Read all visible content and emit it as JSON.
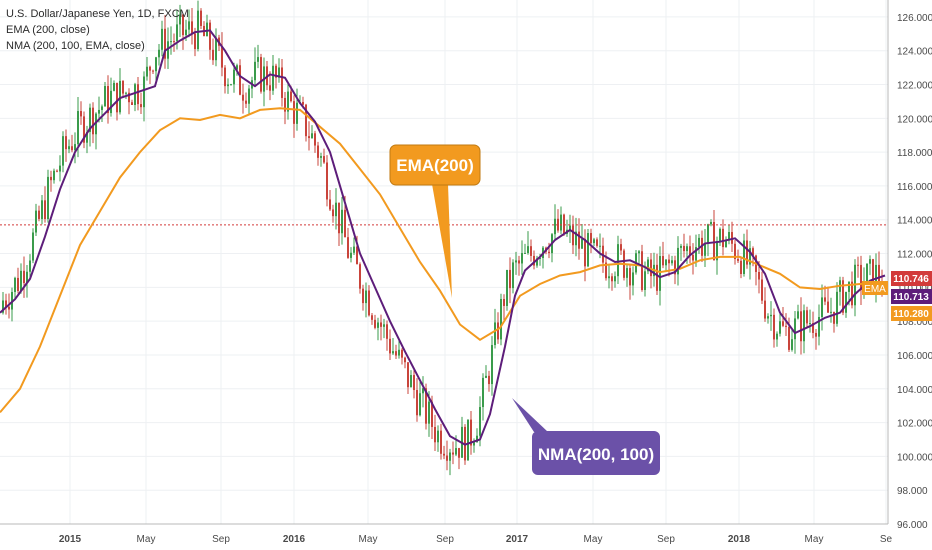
{
  "legend": {
    "title": "U.S. Dollar/Japanese Yen, 1D, FXCM",
    "line1": "EMA (200, close)",
    "line2": "NMA (200, 100, EMA, close)"
  },
  "callouts": {
    "ema": "EMA(200)",
    "nma": "NMA(200, 100)"
  },
  "price_badges": {
    "price": "110.746",
    "nma": "110.713",
    "ema_tag": "EMA",
    "ema": "110.280"
  },
  "colors": {
    "price_badge": "#d23a3a",
    "ema": "#f29a1f",
    "nma": "#5d1d7a",
    "ema_callout_fill": "#f29a1f",
    "nma_callout_fill": "#6b51a8",
    "candle_up": "#3a9b4b",
    "candle_down": "#c9443b",
    "dotted_line": "#d23a3a"
  },
  "chart_data": {
    "type": "line",
    "ylim": [
      96,
      127
    ],
    "y_ticks": [
      "96.000",
      "98.000",
      "100.000",
      "102.000",
      "104.000",
      "106.000",
      "108.000",
      "110.000",
      "112.000",
      "114.000",
      "116.000",
      "118.000",
      "120.000",
      "122.000",
      "124.000",
      "126.000"
    ],
    "x_ticks": [
      "2015",
      "May",
      "Sep",
      "2016",
      "May",
      "Sep",
      "2017",
      "May",
      "Sep",
      "2018",
      "May",
      "Se"
    ],
    "reference_line": 113.7,
    "series": [
      {
        "name": "EMA (200, close)",
        "color": "#f29a1f",
        "points": [
          [
            0,
            102.6
          ],
          [
            20,
            104.0
          ],
          [
            40,
            106.5
          ],
          [
            60,
            109.5
          ],
          [
            80,
            112.5
          ],
          [
            100,
            114.5
          ],
          [
            120,
            116.5
          ],
          [
            140,
            118.0
          ],
          [
            160,
            119.3
          ],
          [
            180,
            120.0
          ],
          [
            200,
            119.9
          ],
          [
            220,
            120.2
          ],
          [
            240,
            120.0
          ],
          [
            260,
            120.5
          ],
          [
            280,
            120.6
          ],
          [
            300,
            120.5
          ],
          [
            320,
            119.5
          ],
          [
            340,
            118.5
          ],
          [
            360,
            117.0
          ],
          [
            380,
            115.5
          ],
          [
            400,
            113.5
          ],
          [
            420,
            111.5
          ],
          [
            440,
            109.8
          ],
          [
            460,
            107.8
          ],
          [
            480,
            106.9
          ],
          [
            500,
            107.6
          ],
          [
            520,
            109.5
          ],
          [
            540,
            110.2
          ],
          [
            560,
            110.7
          ],
          [
            580,
            110.9
          ],
          [
            600,
            111.3
          ],
          [
            620,
            111.4
          ],
          [
            640,
            111.3
          ],
          [
            660,
            110.9
          ],
          [
            680,
            111.1
          ],
          [
            700,
            111.6
          ],
          [
            720,
            111.8
          ],
          [
            740,
            111.8
          ],
          [
            760,
            111.3
          ],
          [
            780,
            110.8
          ],
          [
            800,
            110.0
          ],
          [
            820,
            109.9
          ],
          [
            840,
            110.1
          ],
          [
            860,
            110.2
          ],
          [
            880,
            110.3
          ]
        ]
      },
      {
        "name": "NMA (200, 100, EMA, close)",
        "color": "#5d1d7a",
        "points": [
          [
            0,
            108.5
          ],
          [
            15,
            109.3
          ],
          [
            30,
            110.5
          ],
          [
            45,
            113.0
          ],
          [
            60,
            115.8
          ],
          [
            75,
            118.0
          ],
          [
            90,
            119.4
          ],
          [
            105,
            120.3
          ],
          [
            120,
            121.2
          ],
          [
            140,
            121.6
          ],
          [
            155,
            121.9
          ],
          [
            165,
            124.0
          ],
          [
            180,
            124.6
          ],
          [
            195,
            125.1
          ],
          [
            210,
            125.2
          ],
          [
            225,
            124.0
          ],
          [
            240,
            122.5
          ],
          [
            255,
            121.9
          ],
          [
            270,
            122.6
          ],
          [
            285,
            122.4
          ],
          [
            300,
            120.9
          ],
          [
            315,
            119.8
          ],
          [
            330,
            118.0
          ],
          [
            345,
            115.0
          ],
          [
            360,
            112.0
          ],
          [
            375,
            110.0
          ],
          [
            390,
            108.0
          ],
          [
            405,
            106.2
          ],
          [
            420,
            104.5
          ],
          [
            435,
            102.8
          ],
          [
            450,
            101.2
          ],
          [
            465,
            100.7
          ],
          [
            480,
            101.0
          ],
          [
            490,
            102.5
          ],
          [
            505,
            106.5
          ],
          [
            515,
            109.5
          ],
          [
            525,
            111.0
          ],
          [
            540,
            111.8
          ],
          [
            555,
            112.8
          ],
          [
            570,
            113.4
          ],
          [
            585,
            112.8
          ],
          [
            600,
            112.0
          ],
          [
            615,
            111.5
          ],
          [
            630,
            111.6
          ],
          [
            645,
            111.2
          ],
          [
            660,
            110.6
          ],
          [
            675,
            110.9
          ],
          [
            690,
            111.9
          ],
          [
            705,
            112.6
          ],
          [
            720,
            112.7
          ],
          [
            735,
            112.9
          ],
          [
            750,
            112.1
          ],
          [
            765,
            110.8
          ],
          [
            780,
            108.5
          ],
          [
            795,
            107.3
          ],
          [
            810,
            107.7
          ],
          [
            825,
            108.2
          ],
          [
            840,
            108.5
          ],
          [
            855,
            109.6
          ],
          [
            870,
            110.4
          ],
          [
            885,
            110.7
          ]
        ]
      }
    ]
  }
}
